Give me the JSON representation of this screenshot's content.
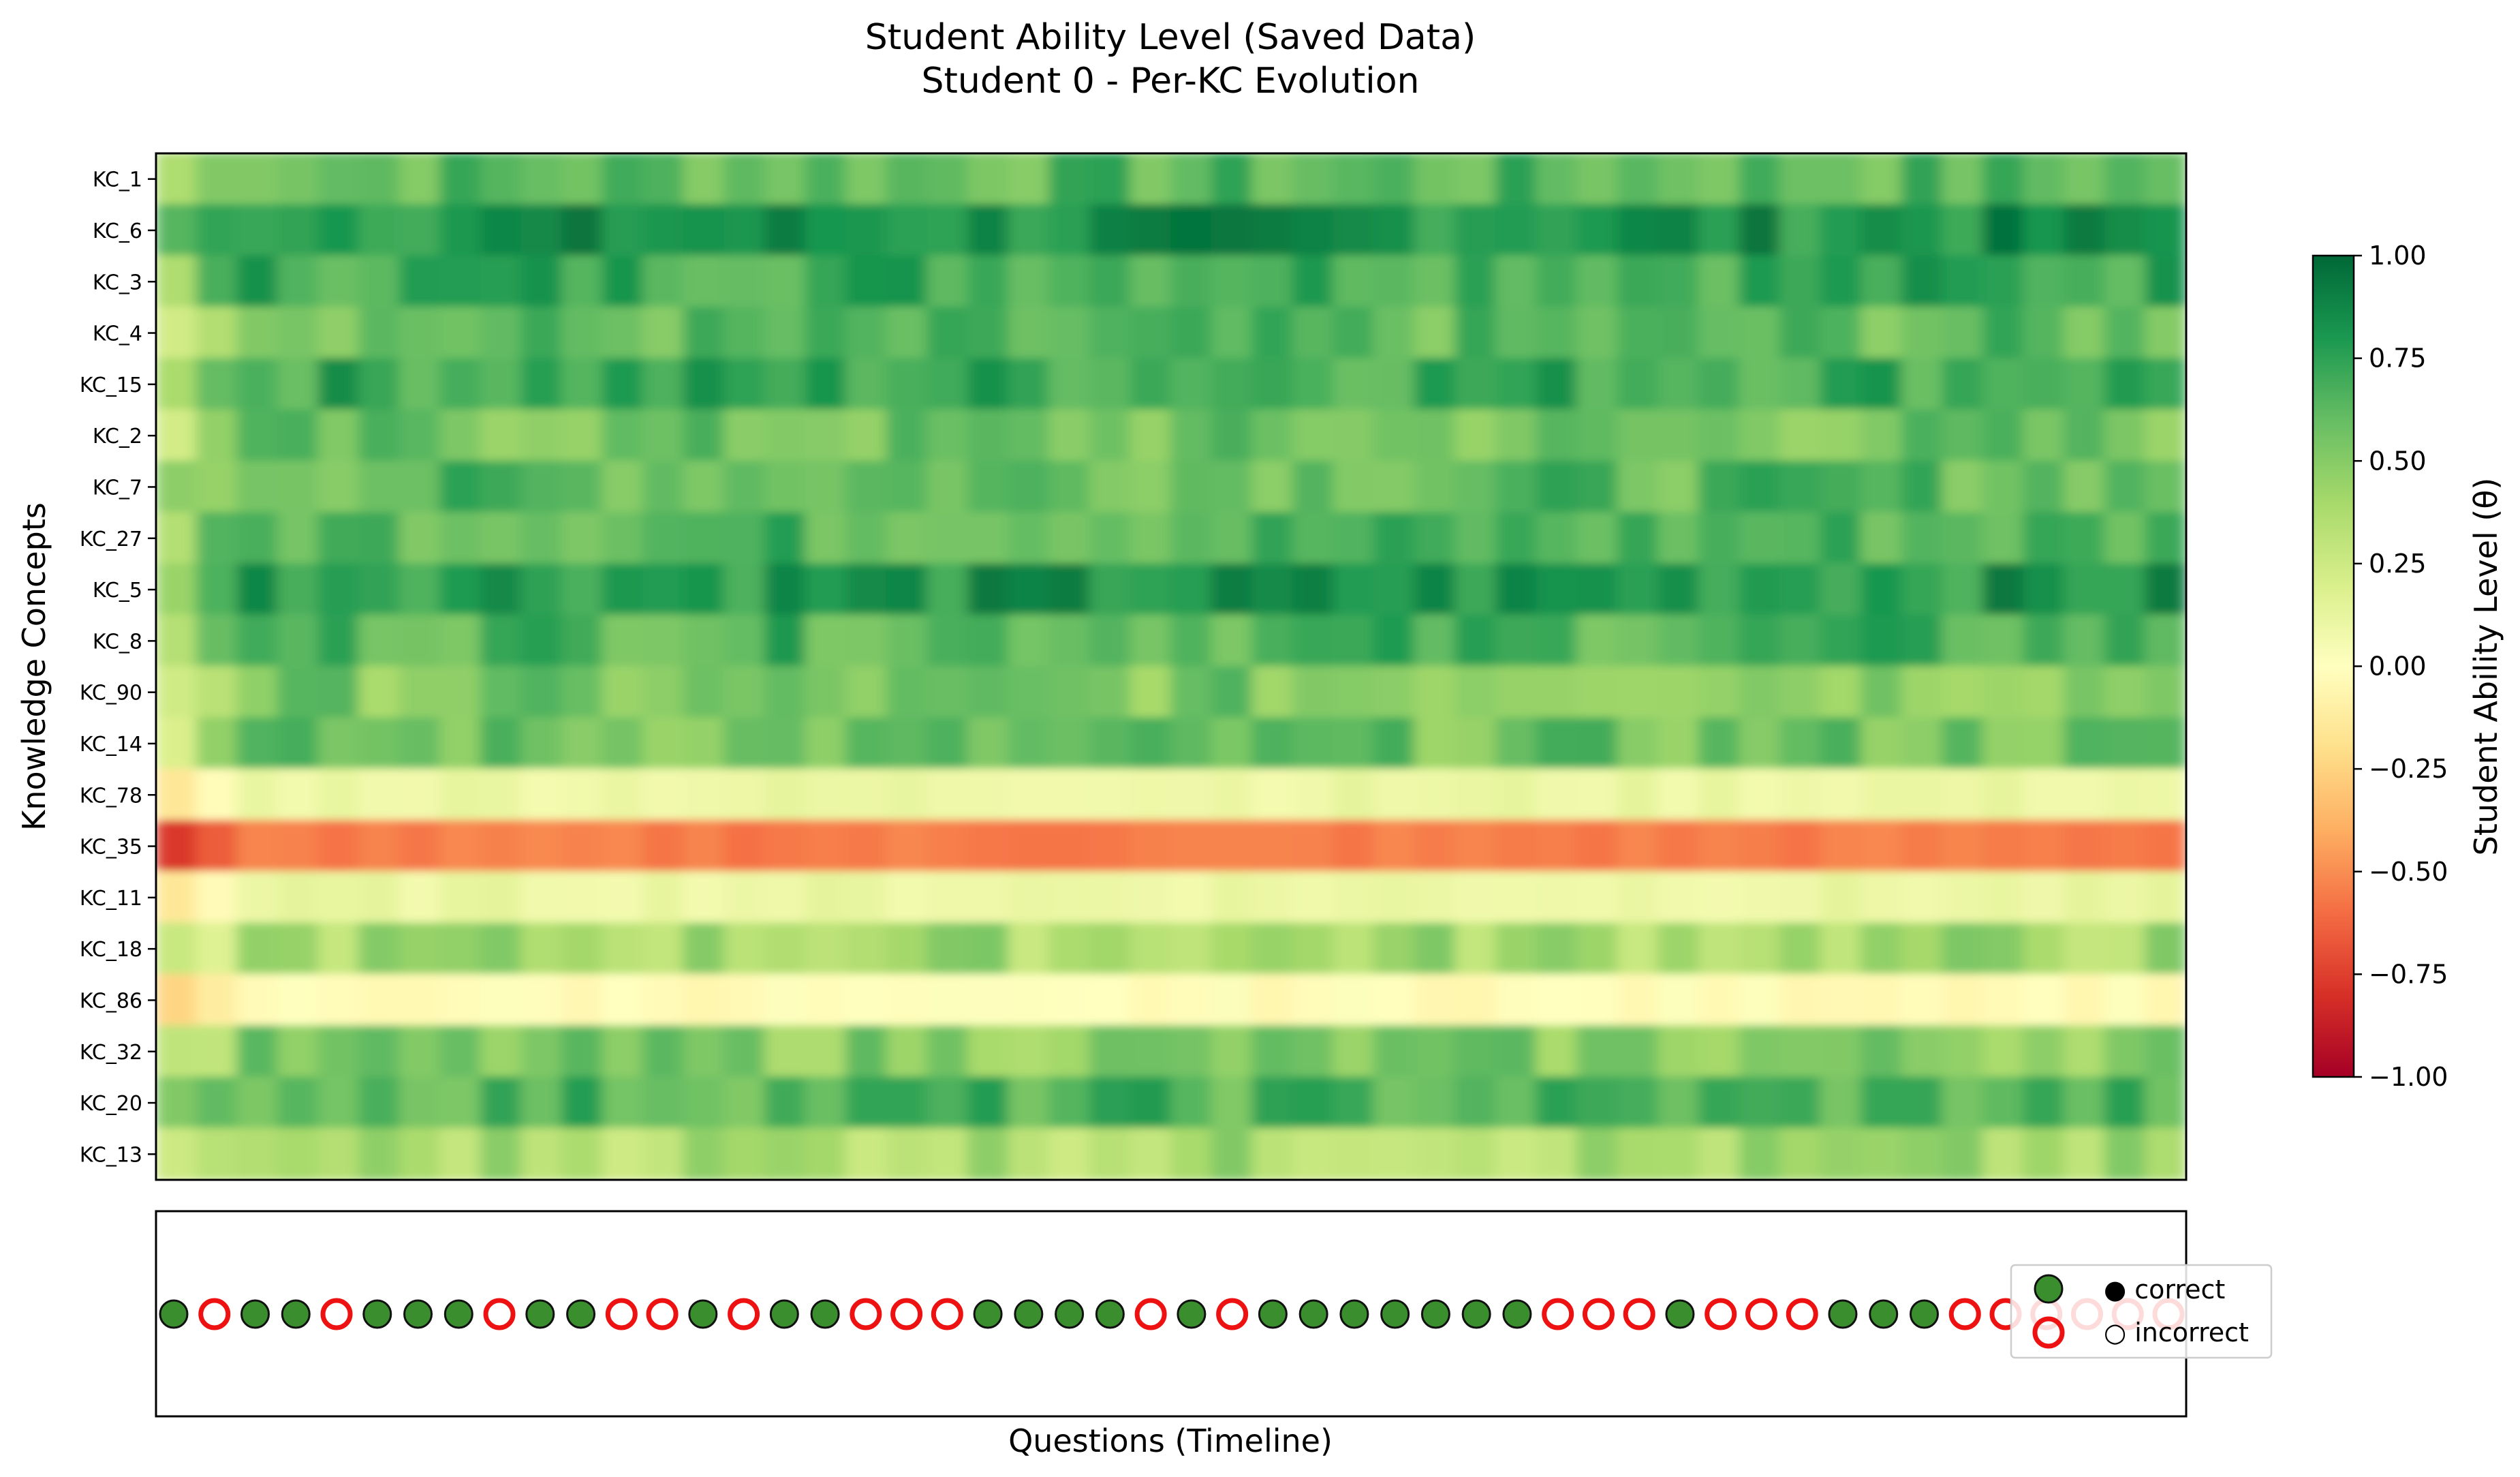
{
  "title_line1": "Student Ability Level (Saved Data)",
  "title_line2": "Student 0 - Per-KC Evolution",
  "chart_data": [
    {
      "type": "heatmap",
      "ylabel": "Knowledge Concepts",
      "colorbar_label": "Student Ability Level (θ)",
      "colormap": "RdYlGn",
      "vlim": [
        -1.0,
        1.0
      ],
      "colorbar_ticks": [
        "1.00",
        "0.75",
        "0.50",
        "0.25",
        "0.00",
        "−0.25",
        "−0.50",
        "−0.75",
        "−1.00"
      ],
      "rows": [
        "KC_1",
        "KC_6",
        "KC_3",
        "KC_4",
        "KC_15",
        "KC_2",
        "KC_7",
        "KC_27",
        "KC_5",
        "KC_8",
        "KC_90",
        "KC_14",
        "KC_78",
        "KC_35",
        "KC_11",
        "KC_18",
        "KC_86",
        "KC_32",
        "KC_20",
        "KC_13"
      ],
      "row_levels": [
        0.62,
        0.82,
        0.72,
        0.6,
        0.72,
        0.55,
        0.62,
        0.65,
        0.8,
        0.66,
        0.52,
        0.56,
        0.1,
        -0.55,
        0.1,
        0.4,
        -0.02,
        0.5,
        0.65,
        0.38
      ]
    },
    {
      "type": "scatter",
      "xlabel": "Questions (Timeline)",
      "n_questions": 50,
      "responses": [
        1,
        0,
        1,
        1,
        0,
        1,
        1,
        1,
        0,
        1,
        1,
        0,
        0,
        1,
        0,
        1,
        1,
        0,
        0,
        0,
        1,
        1,
        1,
        1,
        0,
        1,
        0,
        1,
        1,
        1,
        1,
        1,
        1,
        1,
        0,
        0,
        0,
        1,
        0,
        0,
        0,
        1,
        1,
        1,
        0,
        0,
        0,
        0,
        0,
        0
      ],
      "legend": {
        "correct": "● correct",
        "incorrect": "○ incorrect"
      },
      "colors": {
        "correct_fill": "#3a8e2e",
        "incorrect_edge": "#ee1111"
      }
    }
  ]
}
